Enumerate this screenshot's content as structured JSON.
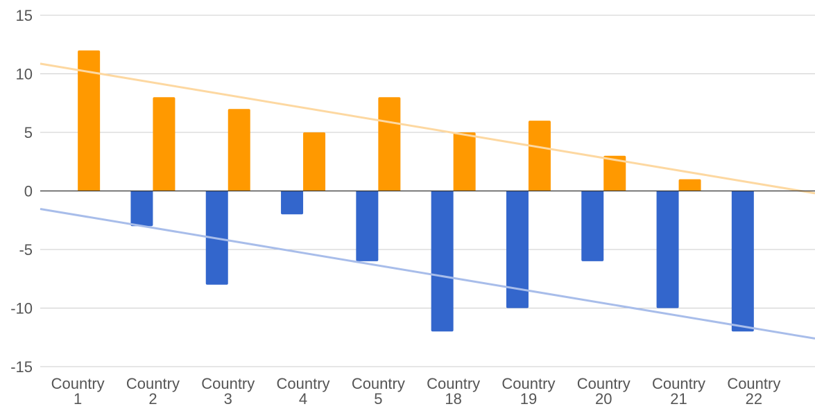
{
  "chart_data": {
    "type": "bar",
    "categories": [
      "Country 1",
      "Country 2",
      "Country 3",
      "Country 4",
      "Country 5",
      "Country 18",
      "Country 19",
      "Country 20",
      "Country 21",
      "Country 22"
    ],
    "category_lines": [
      [
        "Country",
        "1"
      ],
      [
        "Country",
        "2"
      ],
      [
        "Country",
        "3"
      ],
      [
        "Country",
        "4"
      ],
      [
        "Country",
        "5"
      ],
      [
        "Country",
        "18"
      ],
      [
        "Country",
        "19"
      ],
      [
        "Country",
        "20"
      ],
      [
        "Country",
        "21"
      ],
      [
        "Country",
        "22"
      ]
    ],
    "series": [
      {
        "values": [
          0,
          -3,
          -8,
          -2,
          -6,
          -12,
          -10,
          -6,
          -10,
          -12
        ],
        "color": "#3366cc",
        "trendline_color": "#a8bdea"
      },
      {
        "values": [
          12,
          8,
          7,
          5,
          8,
          5,
          6,
          3,
          1,
          0
        ],
        "color": "#ff9900",
        "trendline_color": "#fdd8a1"
      }
    ],
    "trendlines": true,
    "ylim": [
      -15,
      15
    ],
    "yticks": [
      15,
      10,
      5,
      0,
      -5,
      -10,
      -15
    ],
    "ytick_labels": [
      "15",
      "10",
      "5",
      "0",
      "-5",
      "-10",
      "-15"
    ],
    "grid": true,
    "legend": "none",
    "xlabel": "",
    "ylabel": "",
    "title": ""
  }
}
